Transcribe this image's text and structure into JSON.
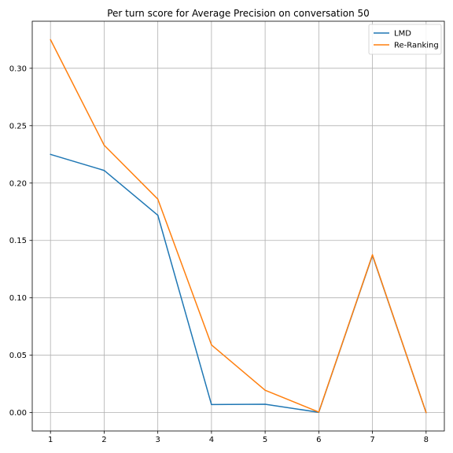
{
  "chart_data": {
    "type": "line",
    "title": "Per turn score for Average Precision on conversation 50",
    "xlabel": "",
    "ylabel": "",
    "x": [
      1,
      2,
      3,
      4,
      5,
      6,
      7,
      8
    ],
    "x_ticks": [
      "1",
      "2",
      "3",
      "4",
      "5",
      "6",
      "7",
      "8"
    ],
    "y_ticks": [
      "0.00",
      "0.05",
      "0.10",
      "0.15",
      "0.20",
      "0.25",
      "0.30"
    ],
    "xlim": [
      0.66,
      8.34
    ],
    "ylim": [
      -0.016,
      0.341
    ],
    "grid": true,
    "legend_position": "top-right",
    "series": [
      {
        "name": "LMD",
        "color": "#1f77b4",
        "values": [
          0.225,
          0.211,
          0.172,
          0.007,
          0.0073,
          0.0003,
          0.137,
          0.0
        ]
      },
      {
        "name": "Re-Ranking",
        "color": "#ff7f0e",
        "values": [
          0.325,
          0.233,
          0.186,
          0.059,
          0.0195,
          0.0005,
          0.1375,
          0.0
        ]
      }
    ]
  }
}
